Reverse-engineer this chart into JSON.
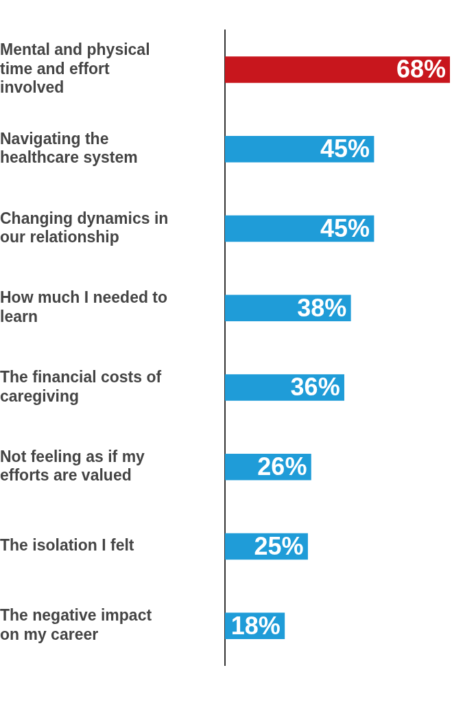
{
  "chart_data": {
    "type": "bar",
    "orientation": "horizontal",
    "categories": [
      "Mental and physical time and effort involved",
      "Navigating the healthcare system",
      "Changing dynamics in our relationship",
      "How much I needed to learn",
      "The financial costs of caregiving",
      "Not feeling as if my efforts are valued",
      "The isolation I felt",
      "The negative impact on my career"
    ],
    "values": [
      68,
      45,
      45,
      38,
      36,
      26,
      25,
      18
    ],
    "colors": [
      "#c8161d",
      "#1f9cd8",
      "#1f9cd8",
      "#1f9cd8",
      "#1f9cd8",
      "#1f9cd8",
      "#1f9cd8",
      "#1f9cd8"
    ],
    "value_labels": [
      "68%",
      "45%",
      "45%",
      "38%",
      "36%",
      "26%",
      "25%",
      "18%"
    ],
    "xlim": [
      0,
      68
    ],
    "tick_labels": "y",
    "grid": false,
    "legend": false
  }
}
